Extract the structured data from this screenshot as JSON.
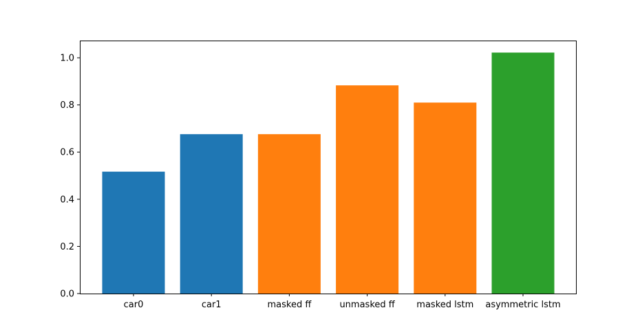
{
  "chart_data": {
    "type": "bar",
    "categories": [
      "car0",
      "car1",
      "masked ff",
      "unmasked ff",
      "masked lstm",
      "asymmetric lstm"
    ],
    "values": [
      0.517,
      0.676,
      0.676,
      0.883,
      0.81,
      1.022
    ],
    "colors": [
      "#1f77b4",
      "#1f77b4",
      "#ff7f0e",
      "#ff7f0e",
      "#ff7f0e",
      "#2ca02c"
    ],
    "ylim": [
      0,
      1.073
    ],
    "yticks": [
      0.0,
      0.2,
      0.4,
      0.6,
      0.8,
      1.0
    ],
    "ytick_labels": [
      "0.0",
      "0.2",
      "0.4",
      "0.6",
      "0.8",
      "1.0"
    ],
    "title": "",
    "xlabel": "",
    "ylabel": "",
    "grid": false
  }
}
